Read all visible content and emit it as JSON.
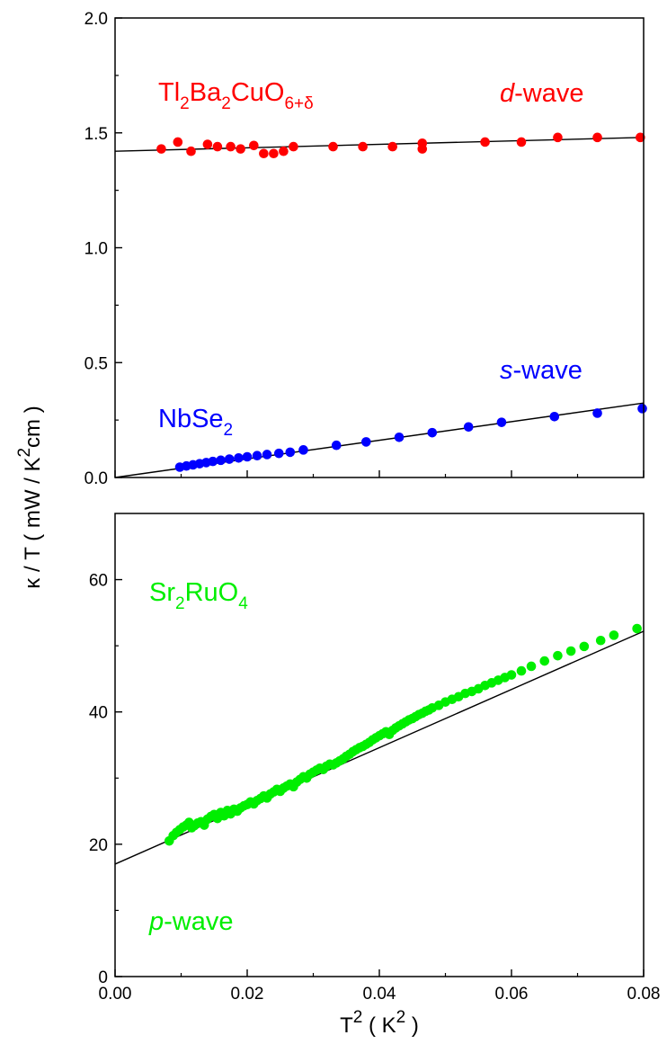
{
  "colors": {
    "tl": "#ff0000",
    "nb": "#0000ff",
    "sr": "#00ee00",
    "fit": "#000000"
  },
  "chart_data": [
    {
      "type": "scatter",
      "panel": "top",
      "xlim": [
        0.0,
        0.08
      ],
      "ylim": [
        0.0,
        2.0
      ],
      "yticks": [
        "0.0",
        "0.5",
        "1.0",
        "1.5",
        "2.0"
      ],
      "yticks_values": [
        0.0,
        0.5,
        1.0,
        1.5,
        2.0
      ],
      "annotations": {
        "tl_main": "Tl",
        "tl_sub1": "2",
        "tl_mid": "Ba",
        "tl_sub2": "2",
        "tl_mid2": "CuO",
        "tl_sub3": "6+δ",
        "d_italic": "d",
        "d_rest": "-wave",
        "nb_main": "NbSe",
        "nb_sub": "2",
        "s_italic": "s",
        "s_rest": "-wave"
      },
      "series": [
        {
          "color_key": "tl",
          "x": [
            0.007,
            0.0095,
            0.0115,
            0.014,
            0.0155,
            0.0175,
            0.019,
            0.021,
            0.0225,
            0.024,
            0.0255,
            0.027,
            0.033,
            0.0375,
            0.042,
            0.0465,
            0.0465,
            0.056,
            0.0615,
            0.067,
            0.073,
            0.0795
          ],
          "y": [
            1.43,
            1.46,
            1.42,
            1.45,
            1.44,
            1.44,
            1.43,
            1.445,
            1.41,
            1.41,
            1.42,
            1.44,
            1.44,
            1.44,
            1.44,
            1.455,
            1.43,
            1.46,
            1.46,
            1.48,
            1.48,
            1.48
          ]
        },
        {
          "color_key": "nb",
          "x": [
            0.0098,
            0.0108,
            0.0118,
            0.0128,
            0.0138,
            0.0148,
            0.016,
            0.0173,
            0.0187,
            0.02,
            0.0215,
            0.023,
            0.0248,
            0.0265,
            0.0285,
            0.0335,
            0.038,
            0.043,
            0.048,
            0.0535,
            0.0585,
            0.0665,
            0.073,
            0.0798
          ],
          "y": [
            0.045,
            0.05,
            0.055,
            0.06,
            0.065,
            0.07,
            0.075,
            0.08,
            0.085,
            0.09,
            0.095,
            0.1,
            0.105,
            0.11,
            0.12,
            0.14,
            0.155,
            0.175,
            0.195,
            0.22,
            0.24,
            0.265,
            0.28,
            0.3
          ]
        }
      ],
      "fits": [
        {
          "color_key": "fit",
          "intercept": 1.42,
          "slope": 0.75
        },
        {
          "color_key": "fit",
          "intercept": 0.0,
          "slope": 4.05
        }
      ]
    },
    {
      "type": "scatter",
      "panel": "bottom",
      "xlim": [
        0.0,
        0.08
      ],
      "ylim": [
        0,
        70
      ],
      "yticks": [
        "0",
        "20",
        "40",
        "60"
      ],
      "yticks_values": [
        0,
        20,
        40,
        60
      ],
      "xticks": [
        "0.00",
        "0.02",
        "0.04",
        "0.06",
        "0.08"
      ],
      "xticks_values": [
        0.0,
        0.02,
        0.04,
        0.06,
        0.08
      ],
      "annotations": {
        "sr_main": "Sr",
        "sr_sub1": "2",
        "sr_mid": "RuO",
        "sr_sub2": "4",
        "p_italic": "p",
        "p_rest": "-wave"
      },
      "series": [
        {
          "color_key": "sr",
          "x": [
            0.0082,
            0.0088,
            0.0093,
            0.0098,
            0.0103,
            0.0108,
            0.0112,
            0.0116,
            0.012,
            0.0125,
            0.013,
            0.0135,
            0.014,
            0.0145,
            0.015,
            0.0155,
            0.016,
            0.0165,
            0.017,
            0.0175,
            0.018,
            0.0185,
            0.019,
            0.0195,
            0.02,
            0.0205,
            0.021,
            0.0215,
            0.022,
            0.0225,
            0.023,
            0.0235,
            0.024,
            0.0245,
            0.025,
            0.0255,
            0.026,
            0.0265,
            0.027,
            0.0275,
            0.028,
            0.0285,
            0.029,
            0.0295,
            0.03,
            0.0305,
            0.031,
            0.0315,
            0.032,
            0.0325,
            0.033,
            0.0335,
            0.034,
            0.0345,
            0.035,
            0.0355,
            0.036,
            0.0365,
            0.037,
            0.0375,
            0.038,
            0.0385,
            0.039,
            0.0395,
            0.04,
            0.0405,
            0.041,
            0.0415,
            0.042,
            0.0425,
            0.043,
            0.0435,
            0.044,
            0.0445,
            0.045,
            0.0455,
            0.046,
            0.0465,
            0.047,
            0.0475,
            0.048,
            0.049,
            0.05,
            0.051,
            0.052,
            0.053,
            0.054,
            0.055,
            0.056,
            0.057,
            0.058,
            0.059,
            0.06,
            0.0615,
            0.063,
            0.065,
            0.067,
            0.069,
            0.071,
            0.0735,
            0.0755,
            0.079
          ],
          "y": [
            20.5,
            21.3,
            21.8,
            22.2,
            22.6,
            22.9,
            23.3,
            22.5,
            22.8,
            23.2,
            23.4,
            22.9,
            23.8,
            24.2,
            24.5,
            23.9,
            24.8,
            24.3,
            25.1,
            24.6,
            25.3,
            25.0,
            25.5,
            25.8,
            26.0,
            26.4,
            26.1,
            26.6,
            26.9,
            27.3,
            27.0,
            27.6,
            27.9,
            28.3,
            28.0,
            28.5,
            28.8,
            29.1,
            28.7,
            29.4,
            29.8,
            30.2,
            30.0,
            30.6,
            30.9,
            31.2,
            31.5,
            31.3,
            31.8,
            32.1,
            32.0,
            32.3,
            32.6,
            32.9,
            33.3,
            33.6,
            34.0,
            34.3,
            34.6,
            34.8,
            35.1,
            35.4,
            35.8,
            36.1,
            36.4,
            36.7,
            37.0,
            36.6,
            37.2,
            37.6,
            37.9,
            38.2,
            38.5,
            38.8,
            39.0,
            39.3,
            39.6,
            39.8,
            40.1,
            40.3,
            40.6,
            41.0,
            41.5,
            41.9,
            42.3,
            42.8,
            43.1,
            43.5,
            44.0,
            44.4,
            44.8,
            45.2,
            45.6,
            46.2,
            46.9,
            47.7,
            48.5,
            49.2,
            49.9,
            50.8,
            51.6,
            52.6
          ]
        }
      ],
      "fits": [
        {
          "color_key": "fit",
          "intercept": 17.0,
          "slope": 440.0
        }
      ]
    }
  ],
  "axes": {
    "xlabel_main": "T",
    "xlabel_sup": "2",
    "xlabel_rest": " ( K",
    "xlabel_sup2": "2",
    "xlabel_end": " )",
    "ylabel_main": "κ / T ( mW / K",
    "ylabel_sup": "2",
    "ylabel_end": "cm )"
  }
}
